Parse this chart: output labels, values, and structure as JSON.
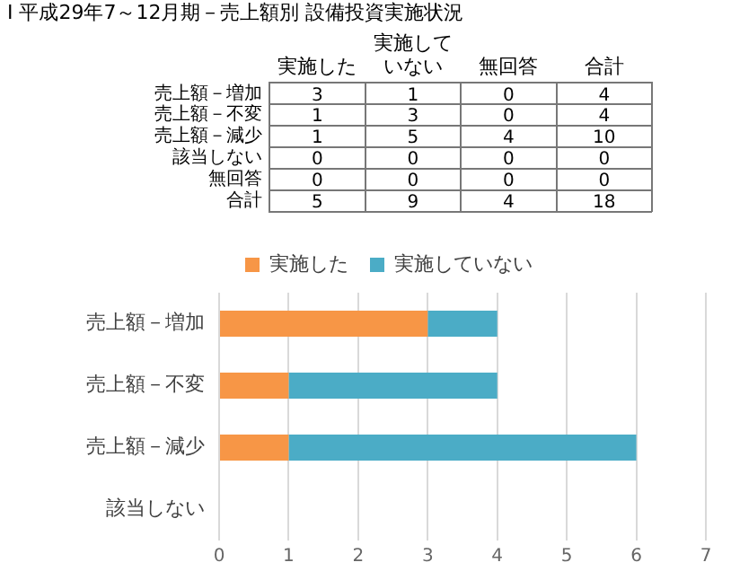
{
  "chart_data": [
    {
      "type": "heatmap",
      "title": "Ⅰ 平成29年7～12月期－売上額別 設備投資実施状況",
      "categories": [
        "実施した",
        "実施していない",
        "無回答",
        "合計"
      ],
      "y_categories": [
        "売上額－増加",
        "売上額－不変",
        "売上額－減少",
        "該当しない",
        "無回答",
        "合計"
      ],
      "data_labels": true,
      "cells": [
        [
          3,
          1,
          0,
          4
        ],
        [
          1,
          3,
          0,
          4
        ],
        [
          1,
          5,
          4,
          10
        ],
        [
          0,
          0,
          0,
          0
        ],
        [
          0,
          0,
          0,
          0
        ],
        [
          5,
          9,
          4,
          18
        ]
      ]
    },
    {
      "type": "bar",
      "orientation": "horizontal",
      "stacked": true,
      "categories": [
        "売上額－増加",
        "売上額－不変",
        "売上額－減少",
        "該当しない"
      ],
      "series": [
        {
          "name": "実施した",
          "color": "#f79646",
          "values": [
            3,
            1,
            1,
            0
          ]
        },
        {
          "name": "実施していない",
          "color": "#4bacc6",
          "values": [
            1,
            3,
            5,
            0
          ]
        }
      ],
      "xlim": [
        0,
        7
      ],
      "xticks": [
        0,
        1,
        2,
        3,
        4,
        5,
        6,
        7
      ],
      "grid": "x",
      "legend": "top"
    }
  ]
}
